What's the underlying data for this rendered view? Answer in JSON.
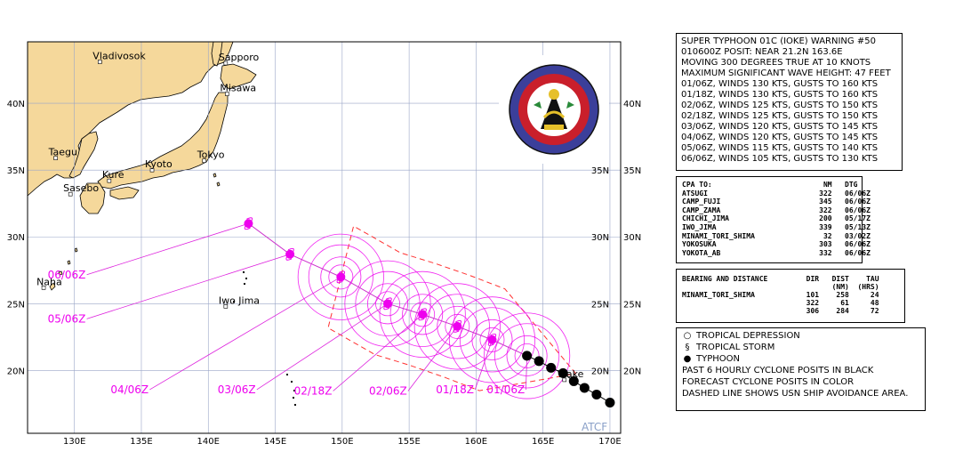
{
  "map": {
    "lon_labels": [
      "130E",
      "135E",
      "140E",
      "145E",
      "150E",
      "155E",
      "160E",
      "165E",
      "170E"
    ],
    "lat_labels": [
      "20N",
      "25N",
      "30N",
      "35N",
      "40N"
    ],
    "cities": [
      {
        "name": "Vladivosok",
        "lon": 131.9,
        "lat": 43.1
      },
      {
        "name": "Sapporo",
        "lon": 141.3,
        "lat": 43.0
      },
      {
        "name": "Misawa",
        "lon": 141.4,
        "lat": 40.7
      },
      {
        "name": "Taegu",
        "lon": 128.6,
        "lat": 35.9
      },
      {
        "name": "Kyoto",
        "lon": 135.8,
        "lat": 35.0
      },
      {
        "name": "Tokyo",
        "lon": 139.7,
        "lat": 35.7
      },
      {
        "name": "Kure",
        "lon": 132.6,
        "lat": 34.2
      },
      {
        "name": "Sasebo",
        "lon": 129.7,
        "lat": 33.2
      },
      {
        "name": "Naha",
        "lon": 127.7,
        "lat": 26.2
      },
      {
        "name": "Iwo Jima",
        "lon": 141.3,
        "lat": 24.8
      },
      {
        "name": "Wake",
        "lon": 166.6,
        "lat": 19.3
      }
    ],
    "credit": "ATCF",
    "colors": {
      "land": "#f5d89b",
      "sea": "#ffffff",
      "grid": "#9aa6c8",
      "track": "#ee00ee",
      "past": "#000000"
    }
  },
  "track": {
    "past": [
      {
        "lon": 170.0,
        "lat": 17.6
      },
      {
        "lon": 169.0,
        "lat": 18.2
      },
      {
        "lon": 168.1,
        "lat": 18.7
      },
      {
        "lon": 167.3,
        "lat": 19.2
      },
      {
        "lon": 166.5,
        "lat": 19.8
      },
      {
        "lon": 165.6,
        "lat": 20.2
      },
      {
        "lon": 164.7,
        "lat": 20.7
      },
      {
        "lon": 163.8,
        "lat": 21.1
      }
    ],
    "forecast": [
      {
        "label": "01/06Z",
        "lon": 161.2,
        "lat": 22.3,
        "symbol": "typhoon",
        "radii": [
          0.9,
          1.5,
          2.4,
          3.2
        ]
      },
      {
        "label": "01/18Z",
        "lon": 158.6,
        "lat": 23.3,
        "symbol": "typhoon",
        "radii": [
          0.9,
          1.5,
          2.4,
          3.2
        ]
      },
      {
        "label": "02/06Z",
        "lon": 156.0,
        "lat": 24.2,
        "symbol": "typhoon",
        "radii": [
          0.9,
          1.5,
          2.4,
          3.2
        ]
      },
      {
        "label": "02/18Z",
        "lon": 153.4,
        "lat": 25.0,
        "symbol": "typhoon",
        "radii": [
          0.9,
          1.5,
          2.4,
          3.2
        ]
      },
      {
        "label": "03/06Z",
        "lon": 149.9,
        "lat": 27.0,
        "symbol": "typhoon",
        "radii": [
          0.9,
          1.5,
          2.4,
          3.2
        ]
      },
      {
        "label": "04/06Z",
        "lon": 146.1,
        "lat": 28.7,
        "symbol": "storm",
        "radii": []
      },
      {
        "label": "05/06Z",
        "lon": 143.0,
        "lat": 31.0,
        "symbol": "storm",
        "radii": []
      },
      {
        "label": "06/06Z",
        "lon": 143.0,
        "lat": 31.0,
        "symbol": "storm",
        "radii": []
      }
    ],
    "labels": [
      {
        "text": "06/06Z",
        "lon": 128.0,
        "lat": 26.9,
        "target": 1
      },
      {
        "text": "05/06Z",
        "lon": 128.0,
        "lat": 23.6,
        "target": 0
      },
      {
        "text": "04/06Z",
        "lon": 132.7,
        "lat": 18.3,
        "target": 2
      },
      {
        "text": "03/06Z",
        "lon": 140.7,
        "lat": 18.3,
        "target": 3
      },
      {
        "text": "02/18Z",
        "lon": 146.4,
        "lat": 18.2,
        "target": 4
      },
      {
        "text": "02/06Z",
        "lon": 152.0,
        "lat": 18.2,
        "target": 5
      },
      {
        "text": "01/18Z",
        "lon": 157.0,
        "lat": 18.3,
        "target": 6
      },
      {
        "text": "01/06Z",
        "lon": 160.8,
        "lat": 18.3,
        "target": 7
      }
    ]
  },
  "warning": {
    "lines": [
      "SUPER TYPHOON 01C (IOKE) WARNING #50",
      "010600Z POSIT: NEAR 21.2N 163.6E",
      "MOVING 300 DEGREES TRUE AT 10 KNOTS",
      "MAXIMUM SIGNIFICANT WAVE HEIGHT: 47 FEET",
      "01/06Z, WINDS 130 KTS, GUSTS TO 160 KTS",
      "01/18Z, WINDS 130 KTS, GUSTS TO 160 KTS",
      "02/06Z, WINDS 125 KTS, GUSTS TO 150 KTS",
      "02/18Z, WINDS 125 KTS, GUSTS TO 150 KTS",
      "03/06Z, WINDS 120 KTS, GUSTS TO 145 KTS",
      "04/06Z, WINDS 120 KTS, GUSTS TO 145 KTS",
      "05/06Z, WINDS 115 KTS, GUSTS TO 140 KTS",
      "06/06Z, WINDS 105 KTS, GUSTS TO 130 KTS"
    ]
  },
  "cpa": {
    "header": [
      "CPA TO:",
      "NM",
      "DTG"
    ],
    "rows": [
      [
        "ATSUGI",
        "322",
        "06/06Z"
      ],
      [
        "CAMP_FUJI",
        "345",
        "06/06Z"
      ],
      [
        "CAMP_ZAMA",
        "322",
        "06/06Z"
      ],
      [
        "CHICHI_JIMA",
        "200",
        "05/17Z"
      ],
      [
        "IWO_JIMA",
        "339",
        "05/13Z"
      ],
      [
        "MINAMI_TORI_SHIMA",
        "32",
        "03/02Z"
      ],
      [
        "YOKOSUKA",
        "303",
        "06/06Z"
      ],
      [
        "YOKOTA_AB",
        "332",
        "06/06Z"
      ]
    ]
  },
  "bearing": {
    "header1": [
      "BEARING AND DISTANCE",
      "DIR",
      "DIST",
      "TAU"
    ],
    "header2": [
      "",
      "",
      "(NM)",
      "(HRS)"
    ],
    "rows": [
      [
        "MINAMI_TORI_SHIMA",
        "101",
        "258",
        "24"
      ],
      [
        "",
        "322",
        "61",
        "48"
      ],
      [
        "",
        "306",
        "284",
        "72"
      ]
    ]
  },
  "legend": {
    "items": [
      {
        "symbol": "depression",
        "text": "TROPICAL DEPRESSION"
      },
      {
        "symbol": "storm",
        "text": "TROPICAL STORM"
      },
      {
        "symbol": "typhoon",
        "text": "TYPHOON"
      }
    ],
    "notes": [
      "PAST 6 HOURLY CYCLONE POSITS IN BLACK",
      "FORECAST CYCLONE POSITS IN COLOR",
      "DASHED LINE SHOWS USN SHIP AVOIDANCE AREA."
    ]
  }
}
